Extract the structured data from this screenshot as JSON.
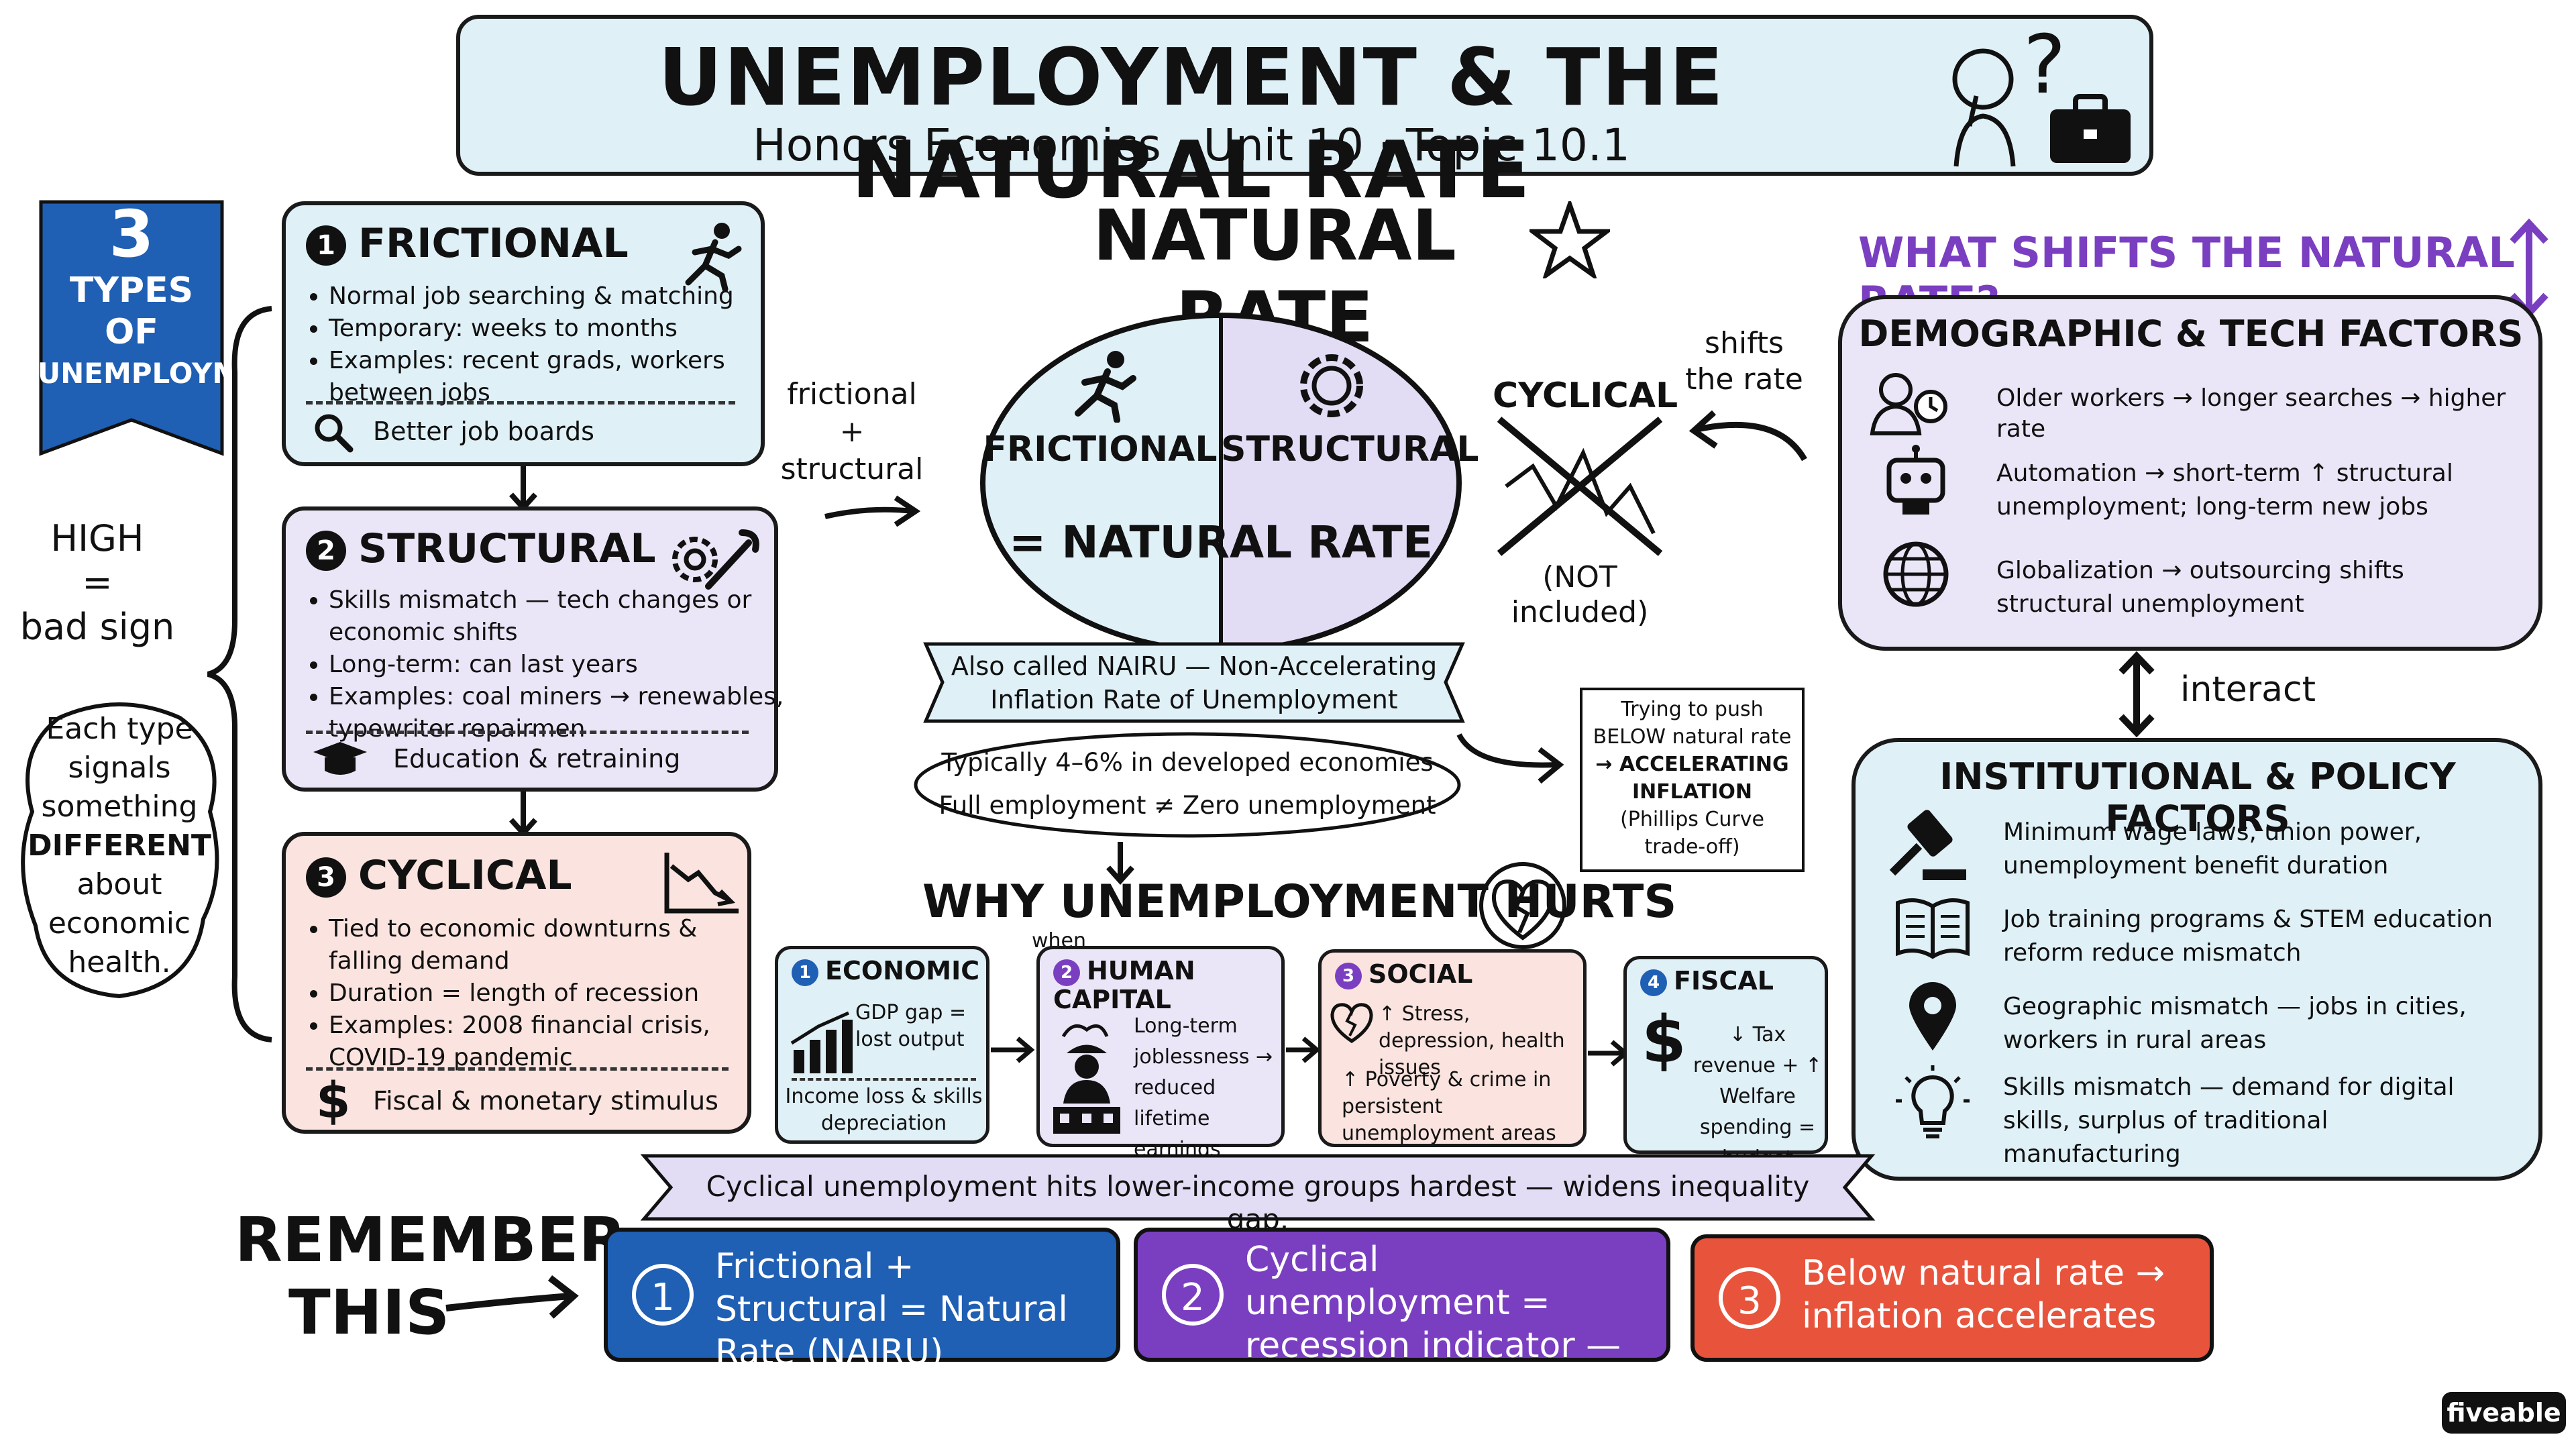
{
  "header": {
    "title": "UNEMPLOYMENT & THE NATURAL RATE",
    "subtitle": "Honors Economics · Unit 10 · Topic 10.1",
    "question_mark": "?"
  },
  "types_banner": {
    "number": "3",
    "line1": "TYPES",
    "line2": "OF",
    "line3": "UNEMPLOYMENT"
  },
  "left_notes": {
    "high_line1": "HIGH",
    "high_line2": "=",
    "high_line3": "bad sign",
    "cloud": [
      "Each type",
      "signals",
      "something",
      "DIFFERENT",
      "about",
      "economic",
      "health."
    ]
  },
  "cards": [
    {
      "num": "1",
      "title": "FRICTIONAL",
      "bullets": [
        "Normal job searching & matching",
        "Temporary: weeks to months",
        "Examples: recent grads, workers between jobs"
      ],
      "footer": "Better job boards"
    },
    {
      "num": "2",
      "title": "STRUCTURAL",
      "bullets": [
        "Skills mismatch — tech changes or economic shifts",
        "Long-term: can last years",
        "Examples: coal miners → renewables, typewriter repairmen"
      ],
      "footer": "Education & retraining"
    },
    {
      "num": "3",
      "title": "CYCLICAL",
      "bullets": [
        "Tied to economic downturns & falling demand",
        "Duration = length of recession",
        "Examples: 2008 financial crisis, COVID-19 pandemic"
      ],
      "footer": "Fiscal & monetary stimulus"
    }
  ],
  "arrow_label": {
    "line1": "frictional",
    "line2": "+",
    "line3": "structural"
  },
  "natural_rate": {
    "title": "NATURAL RATE",
    "left": "FRICTIONAL",
    "right": "STRUCTURAL",
    "equals": "= NATURAL RATE",
    "nairu_line1": "Also called NAIRU — Non-Accelerating",
    "nairu_line2": "Inflation Rate of Unemployment",
    "typical_line1": "Typically 4–6% in developed economies",
    "typical_line2": "Full employment ≠ Zero unemployment"
  },
  "cyclical_note": {
    "title": "CYCLICAL",
    "sub1": "(NOT",
    "sub2": "included)"
  },
  "shifts_label": {
    "line1": "shifts",
    "line2": "the rate"
  },
  "push_note": [
    "Trying to push",
    "BELOW natural rate",
    "→ ACCELERATING",
    "INFLATION",
    "(Phillips Curve",
    "trade-off)"
  ],
  "right_panel": {
    "heading": "WHAT SHIFTS THE NATURAL RATE?",
    "demo_title": "DEMOGRAPHIC & TECH FACTORS",
    "demo_items": [
      "Older workers → longer searches → higher rate",
      "Automation → short-term ↑ structural unemployment; long-term new jobs",
      "Globalization → outsourcing shifts structural unemployment"
    ],
    "interact": "interact",
    "inst_title": "INSTITUTIONAL & POLICY FACTORS",
    "inst_items": [
      "Minimum wage laws, union power, unemployment benefit duration",
      "Job training programs & STEM education reform reduce mismatch",
      "Geographic mismatch — jobs in cities, workers in rural areas",
      "Skills mismatch — demand for digital skills, surplus of traditional manufacturing"
    ]
  },
  "hurts": {
    "title": "WHY UNEMPLOYMENT HURTS",
    "when": "when",
    "effects": [
      {
        "num": "1",
        "title": "ECONOMIC",
        "top": "GDP gap = lost output",
        "bottom": "Income loss & skills depreciation"
      },
      {
        "num": "2",
        "title": "HUMAN CAPITAL",
        "top": "Long-term joblessness → reduced lifetime earnings",
        "bottom": ""
      },
      {
        "num": "3",
        "title": "SOCIAL",
        "top": "↑ Stress, depression, health issues",
        "bottom": "↑ Poverty & crime in persistent unemployment areas"
      },
      {
        "num": "4",
        "title": "FISCAL",
        "top": "↓ Tax revenue + ↑ Welfare spending = budget deficits",
        "bottom": ""
      }
    ],
    "ribbon": "Cyclical unemployment hits lower-income groups hardest — widens inequality gap."
  },
  "remember": {
    "label_line1": "REMEMBER",
    "label_line2": "THIS",
    "items": [
      {
        "num": "1",
        "text": "Frictional + Structural = Natural Rate (NAIRU)",
        "color": "#1f5fb4"
      },
      {
        "num": "2",
        "text": "Cyclical unemployment = recession indicator — fight it with policy",
        "color": "#7a3fc0"
      },
      {
        "num": "3",
        "text": "Below natural rate → inflation accelerates",
        "color": "#e8533c"
      }
    ]
  },
  "brand": "fiveable",
  "colors": {
    "blue_fill": "#dff0f7",
    "purple_fill": "#ebe6f7",
    "pink_fill": "#fbe4df",
    "banner_blue": "#1f5fb4",
    "heading_purple": "#7a3fc0"
  }
}
